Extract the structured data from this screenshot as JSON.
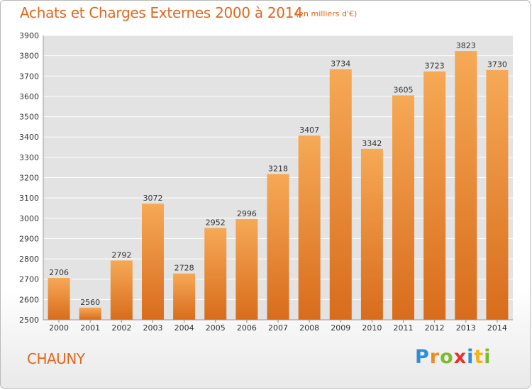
{
  "header": {
    "title": "Achats et Charges Externes 2000 à 2014",
    "subtitle": "(en milliers d'€)"
  },
  "footer": {
    "city": "CHAUNY",
    "logo": "Proxiti"
  },
  "colors": {
    "accent": "#e2671d",
    "bar_light": "#f5a552",
    "bar_dark": "#d96f1d"
  },
  "chart_data": {
    "type": "bar",
    "title": "Achats et Charges Externes 2000 à 2014",
    "subtitle": "(en milliers d'€)",
    "xlabel": "",
    "ylabel": "",
    "categories": [
      "2000",
      "2001",
      "2002",
      "2003",
      "2004",
      "2005",
      "2006",
      "2007",
      "2008",
      "2009",
      "2010",
      "2011",
      "2012",
      "2013",
      "2014"
    ],
    "values": [
      2706,
      2560,
      2792,
      3072,
      2728,
      2952,
      2996,
      3218,
      3407,
      3734,
      3342,
      3605,
      3723,
      3823,
      3730
    ],
    "ylim": [
      2500,
      3900
    ],
    "yticks": [
      2500,
      2600,
      2700,
      2800,
      2900,
      3000,
      3100,
      3200,
      3300,
      3400,
      3500,
      3600,
      3700,
      3800,
      3900
    ],
    "grid": true,
    "data_labels": true,
    "legend": "none"
  }
}
